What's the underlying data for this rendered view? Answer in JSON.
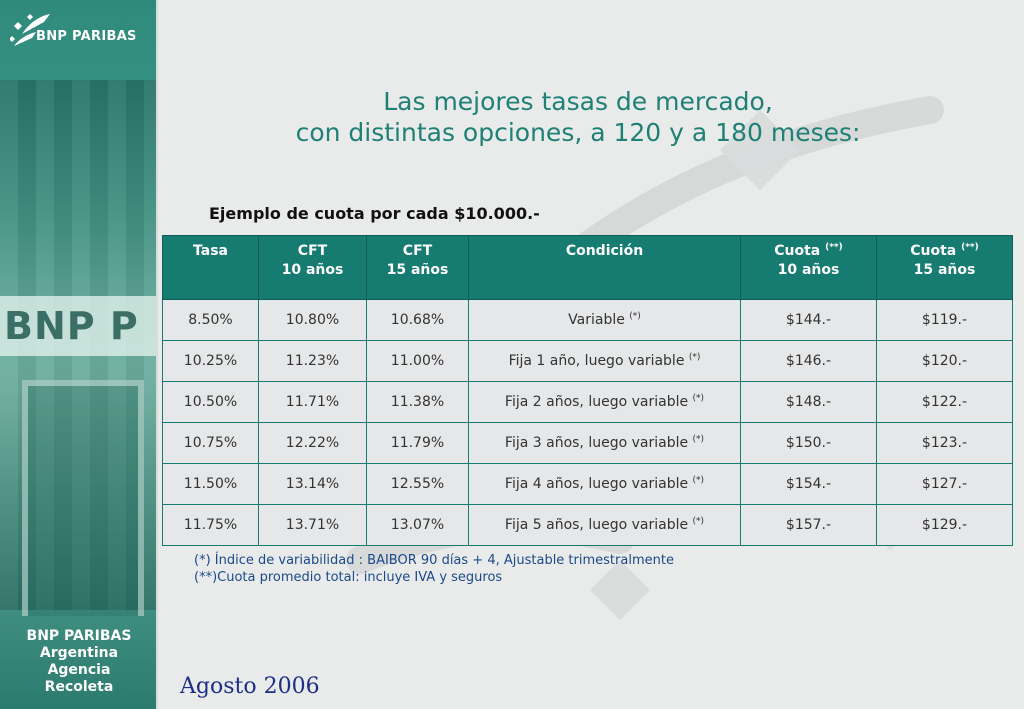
{
  "brand": {
    "logo_text": "BNP PARIBAS",
    "storefront_sign": "BNP P",
    "branch_lines": [
      "BNP PARIBAS",
      "Argentina",
      "Agencia",
      "Recoleta"
    ]
  },
  "title": {
    "line1": "Las mejores tasas de mercado,",
    "line2": "con distintas opciones, a 120 y a 180 meses:"
  },
  "subtitle": "Ejemplo de cuota por cada $10.000.-",
  "table": {
    "headers": [
      {
        "line1": "Tasa",
        "line2": "",
        "sup": ""
      },
      {
        "line1": "CFT",
        "line2": "10 años",
        "sup": ""
      },
      {
        "line1": "CFT",
        "line2": "15 años",
        "sup": ""
      },
      {
        "line1": "Condición",
        "line2": "",
        "sup": ""
      },
      {
        "line1": "Cuota",
        "line2": "10 años",
        "sup": "(**)"
      },
      {
        "line1": "Cuota",
        "line2": "15 años",
        "sup": "(**)"
      }
    ],
    "rows": [
      {
        "tasa": "8.50%",
        "cft10": "10.80%",
        "cft15": "10.68%",
        "condicion": "Variable",
        "sup": "(*)",
        "cuota10": "$144.-",
        "cuota15": "$119.-"
      },
      {
        "tasa": "10.25%",
        "cft10": "11.23%",
        "cft15": "11.00%",
        "condicion": "Fija 1 año, luego variable",
        "sup": "(*)",
        "cuota10": "$146.-",
        "cuota15": "$120.-"
      },
      {
        "tasa": "10.50%",
        "cft10": "11.71%",
        "cft15": "11.38%",
        "condicion": "Fija 2 años, luego variable",
        "sup": "(*)",
        "cuota10": "$148.-",
        "cuota15": "$122.-"
      },
      {
        "tasa": "10.75%",
        "cft10": "12.22%",
        "cft15": "11.79%",
        "condicion": "Fija 3 años, luego variable",
        "sup": "(*)",
        "cuota10": "$150.-",
        "cuota15": "$123.-"
      },
      {
        "tasa": "11.50%",
        "cft10": "13.14%",
        "cft15": "12.55%",
        "condicion": "Fija 4 años, luego variable",
        "sup": "(*)",
        "cuota10": "$154.-",
        "cuota15": "$127.-"
      },
      {
        "tasa": "11.75%",
        "cft10": "13.71%",
        "cft15": "13.07%",
        "condicion": "Fija 5 años, luego variable",
        "sup": "(*)",
        "cuota10": "$157.-",
        "cuota15": "$129.-"
      }
    ]
  },
  "notes": {
    "note1": "(*) Índice de variabilidad : BAIBOR 90 días + 4, Ajustable trimestralmente",
    "note2": "(**)Cuota promedio total: incluye IVA y seguros"
  },
  "date": "Agosto 2006",
  "colors": {
    "accent": "#167b70",
    "title": "#1f8075",
    "notes": "#1b4a8c",
    "date": "#1b2f8a"
  }
}
